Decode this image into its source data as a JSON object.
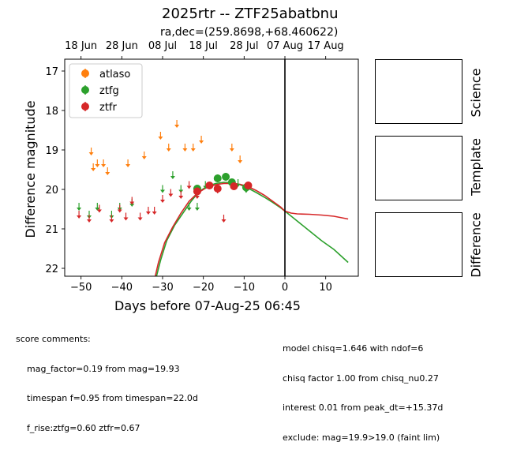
{
  "chart_data": {
    "type": "scatter",
    "title": "2025rtr -- ZTF25abatbnu",
    "subtitle": "ra,dec=(259.8698,+68.460622)",
    "xlabel": "Days before 07-Aug-25 06:45",
    "ylabel": "Difference magnitude",
    "xlim": [
      -54,
      18
    ],
    "ylim": [
      22.2,
      16.7
    ],
    "y_inverted": true,
    "xticks": [
      -50,
      -40,
      -30,
      -20,
      -10,
      0,
      10
    ],
    "xtick_labels": [
      "−50",
      "−40",
      "−30",
      "−20",
      "−10",
      "0",
      "10"
    ],
    "yticks": [
      17,
      18,
      19,
      20,
      21,
      22
    ],
    "ytick_labels": [
      "17",
      "18",
      "19",
      "20",
      "21",
      "22"
    ],
    "top_axis": {
      "ticks": [
        -50,
        -40,
        -30,
        -20,
        -10,
        0,
        10
      ],
      "labels": [
        "18 Jun",
        "28 Jun",
        "08 Jul",
        "18 Jul",
        "28 Jul",
        "07 Aug",
        "17 Aug"
      ]
    },
    "vertical_line_x": 0,
    "legend_position": "upper-left",
    "grid": false,
    "series": [
      {
        "name": "atlaso",
        "color": "#ff7f0e",
        "upper_limits": [
          [
            -47.5,
            19.0
          ],
          [
            -47.0,
            19.4
          ],
          [
            -46.0,
            19.3
          ],
          [
            -44.5,
            19.3
          ],
          [
            -43.5,
            19.5
          ],
          [
            -38.5,
            19.3
          ],
          [
            -34.5,
            19.1
          ],
          [
            -30.5,
            18.6
          ],
          [
            -28.5,
            18.9
          ],
          [
            -26.5,
            18.3
          ],
          [
            -24.5,
            18.9
          ],
          [
            -22.5,
            18.9
          ],
          [
            -20.5,
            18.7
          ],
          [
            -13.0,
            18.9
          ],
          [
            -11.0,
            19.2
          ]
        ],
        "points": []
      },
      {
        "name": "ztfg",
        "color": "#2ca02c",
        "upper_limits": [
          [
            -50.5,
            20.4
          ],
          [
            -48.0,
            20.6
          ],
          [
            -46.0,
            20.4
          ],
          [
            -42.5,
            20.6
          ],
          [
            -40.5,
            20.4
          ],
          [
            -37.5,
            20.3
          ],
          [
            -30.0,
            19.95
          ],
          [
            -27.5,
            19.6
          ],
          [
            -25.5,
            19.95
          ],
          [
            -23.5,
            20.4
          ],
          [
            -21.5,
            20.4
          ],
          [
            -19.5,
            19.85
          ],
          [
            -13.0,
            19.8
          ],
          [
            -11.5,
            19.8
          ],
          [
            -9.5,
            19.95
          ]
        ],
        "points": [
          [
            -21.5,
            19.98,
            0.08
          ],
          [
            -16.5,
            19.72,
            0.1
          ],
          [
            -14.5,
            19.68,
            0.1
          ],
          [
            -13.0,
            19.82,
            0.08
          ],
          [
            -9.5,
            19.95,
            0.1
          ]
        ]
      },
      {
        "name": "ztfr",
        "color": "#d62728",
        "upper_limits": [
          [
            -50.5,
            20.6
          ],
          [
            -48.0,
            20.7
          ],
          [
            -45.5,
            20.45
          ],
          [
            -42.5,
            20.7
          ],
          [
            -40.5,
            20.45
          ],
          [
            -39.0,
            20.65
          ],
          [
            -37.5,
            20.25
          ],
          [
            -35.5,
            20.65
          ],
          [
            -33.5,
            20.5
          ],
          [
            -32.0,
            20.5
          ],
          [
            -30.0,
            20.2
          ],
          [
            -28.0,
            20.05
          ],
          [
            -25.5,
            20.1
          ],
          [
            -23.5,
            19.85
          ],
          [
            -21.5,
            20.1
          ],
          [
            -15.0,
            20.7
          ]
        ],
        "points": [
          [
            -21.5,
            20.05,
            0.1
          ],
          [
            -18.5,
            19.9,
            0.08
          ],
          [
            -16.5,
            19.98,
            0.12
          ],
          [
            -12.5,
            19.92,
            0.1
          ],
          [
            -9.0,
            19.9,
            0.1
          ]
        ]
      }
    ],
    "model_curves": [
      {
        "name": "ztfg",
        "color": "#2ca02c",
        "points": [
          [
            -31.5,
            22.2
          ],
          [
            -30.5,
            21.8
          ],
          [
            -29.0,
            21.3
          ],
          [
            -27.0,
            20.9
          ],
          [
            -25.0,
            20.6
          ],
          [
            -23.0,
            20.3
          ],
          [
            -21.0,
            20.05
          ],
          [
            -19.0,
            19.92
          ],
          [
            -17.0,
            19.85
          ],
          [
            -15.0,
            19.82
          ],
          [
            -13.0,
            19.83
          ],
          [
            -11.0,
            19.88
          ],
          [
            -9.0,
            19.97
          ],
          [
            -7.0,
            20.08
          ],
          [
            -5.0,
            20.2
          ],
          [
            -3.0,
            20.33
          ],
          [
            -1.0,
            20.47
          ],
          [
            0.0,
            20.55
          ],
          [
            3.0,
            20.8
          ],
          [
            6.0,
            21.05
          ],
          [
            9.0,
            21.3
          ],
          [
            12.0,
            21.52
          ],
          [
            15.5,
            21.85
          ]
        ]
      },
      {
        "name": "ztfr",
        "color": "#d62728",
        "points": [
          [
            -31.8,
            22.2
          ],
          [
            -31.0,
            21.85
          ],
          [
            -29.5,
            21.35
          ],
          [
            -27.5,
            20.95
          ],
          [
            -25.5,
            20.6
          ],
          [
            -23.5,
            20.3
          ],
          [
            -21.5,
            20.1
          ],
          [
            -19.5,
            19.97
          ],
          [
            -17.0,
            19.88
          ],
          [
            -15.0,
            19.85
          ],
          [
            -13.0,
            19.85
          ],
          [
            -11.0,
            19.87
          ],
          [
            -9.0,
            19.93
          ],
          [
            -7.0,
            20.03
          ],
          [
            -5.0,
            20.15
          ],
          [
            -3.0,
            20.3
          ],
          [
            -1.0,
            20.45
          ],
          [
            0.0,
            20.55
          ],
          [
            1.5,
            20.6
          ],
          [
            3.0,
            20.62
          ],
          [
            6.0,
            20.63
          ],
          [
            9.0,
            20.65
          ],
          [
            12.0,
            20.68
          ],
          [
            15.5,
            20.75
          ]
        ]
      }
    ]
  },
  "side_panels": [
    {
      "label": "Science"
    },
    {
      "label": "Template"
    },
    {
      "label": "Difference"
    }
  ],
  "notes_left": {
    "heading": "score comments:",
    "lines": [
      "mag_factor=0.19 from mag=19.93",
      "timespan f=0.95 from timespan=22.0d",
      "f_rise:ztfg=0.60 ztfr=0.67"
    ]
  },
  "notes_right": {
    "lines": [
      "model chisq=1.646 with ndof=6",
      "chisq factor 1.00 from chisq_nu0.27",
      "interest 0.01 from peak_dt=+15.37d",
      "exclude: mag=19.9>19.0 (faint lim)"
    ]
  }
}
